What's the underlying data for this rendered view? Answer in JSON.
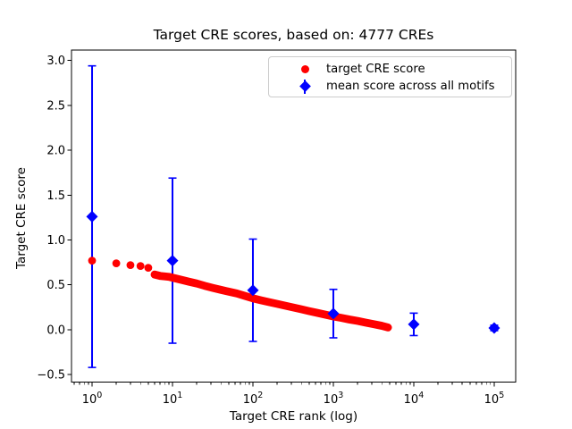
{
  "title": "Target CRE scores, based on: 4777 CREs",
  "axes": {
    "xlabel": "Target CRE rank (log)",
    "ylabel": "Target CRE score",
    "y_ticks": [
      {
        "value": 3.0,
        "label": "3.0"
      },
      {
        "value": 2.5,
        "label": "2.5"
      },
      {
        "value": 2.0,
        "label": "2.0"
      },
      {
        "value": 1.5,
        "label": "1.5"
      },
      {
        "value": 1.0,
        "label": "1.0"
      },
      {
        "value": 0.5,
        "label": "0.5"
      },
      {
        "value": 0.0,
        "label": "0.0"
      },
      {
        "value": -0.5,
        "label": "−0.5"
      }
    ],
    "x_ticks": [
      {
        "value": 1,
        "base": "10",
        "exp": "0"
      },
      {
        "value": 10,
        "base": "10",
        "exp": "1"
      },
      {
        "value": 100,
        "base": "10",
        "exp": "2"
      },
      {
        "value": 1000,
        "base": "10",
        "exp": "3"
      },
      {
        "value": 10000,
        "base": "10",
        "exp": "4"
      },
      {
        "value": 100000,
        "base": "10",
        "exp": "5"
      }
    ],
    "x_minor_mantissas": [
      2,
      3,
      4,
      5,
      6,
      7,
      8,
      9
    ],
    "x_minor_decades": [
      -1,
      0,
      1,
      2,
      3,
      4
    ]
  },
  "legend": {
    "items": [
      {
        "label": "target CRE score",
        "marker": "circle",
        "color": "#ff0000"
      },
      {
        "label": "mean score across all motifs",
        "marker": "diamond-errorbar",
        "color": "#0000ff"
      }
    ]
  },
  "colors": {
    "red": "#ff0000",
    "blue": "#0000ff",
    "axis": "#000000",
    "legend_border": "#cccccc",
    "background": "#ffffff"
  },
  "chart_data": {
    "type": "scatter",
    "title": "Target CRE scores, based on: 4777 CREs",
    "xlabel": "Target CRE rank (log)",
    "ylabel": "Target CRE score",
    "x_scale": "log",
    "xlim": [
      0.555,
      185000
    ],
    "ylim": [
      -0.583,
      3.116
    ],
    "grid": false,
    "legend_position": "upper right",
    "series": [
      {
        "name": "target CRE score",
        "type": "scatter",
        "marker": "circle",
        "color": "#ff0000",
        "band_from_rank": 6,
        "points": [
          [
            1,
            0.77
          ],
          [
            2,
            0.74
          ],
          [
            3,
            0.72
          ],
          [
            4,
            0.71
          ],
          [
            5,
            0.69
          ],
          [
            6,
            0.615
          ],
          [
            7,
            0.6
          ],
          [
            8,
            0.595
          ],
          [
            9,
            0.59
          ],
          [
            10,
            0.58
          ],
          [
            13,
            0.555
          ],
          [
            16,
            0.535
          ],
          [
            20,
            0.515
          ],
          [
            25,
            0.49
          ],
          [
            32,
            0.465
          ],
          [
            40,
            0.445
          ],
          [
            50,
            0.425
          ],
          [
            63,
            0.405
          ],
          [
            79,
            0.378
          ],
          [
            100,
            0.35
          ],
          [
            126,
            0.328
          ],
          [
            158,
            0.308
          ],
          [
            200,
            0.288
          ],
          [
            251,
            0.268
          ],
          [
            316,
            0.248
          ],
          [
            398,
            0.228
          ],
          [
            501,
            0.208
          ],
          [
            631,
            0.188
          ],
          [
            794,
            0.168
          ],
          [
            1000,
            0.148
          ],
          [
            1259,
            0.132
          ],
          [
            1585,
            0.114
          ],
          [
            2000,
            0.098
          ],
          [
            2512,
            0.08
          ],
          [
            3162,
            0.062
          ],
          [
            3981,
            0.044
          ],
          [
            4777,
            0.025
          ]
        ]
      },
      {
        "name": "mean score across all motifs",
        "type": "errorbar",
        "marker": "diamond",
        "color": "#0000ff",
        "points_mean_err": [
          [
            1,
            1.26,
            1.68
          ],
          [
            10,
            0.77,
            0.92
          ],
          [
            100,
            0.44,
            0.57
          ],
          [
            1000,
            0.18,
            0.27
          ],
          [
            10000,
            0.06,
            0.125
          ],
          [
            100000,
            0.02,
            0.03
          ]
        ]
      }
    ]
  }
}
